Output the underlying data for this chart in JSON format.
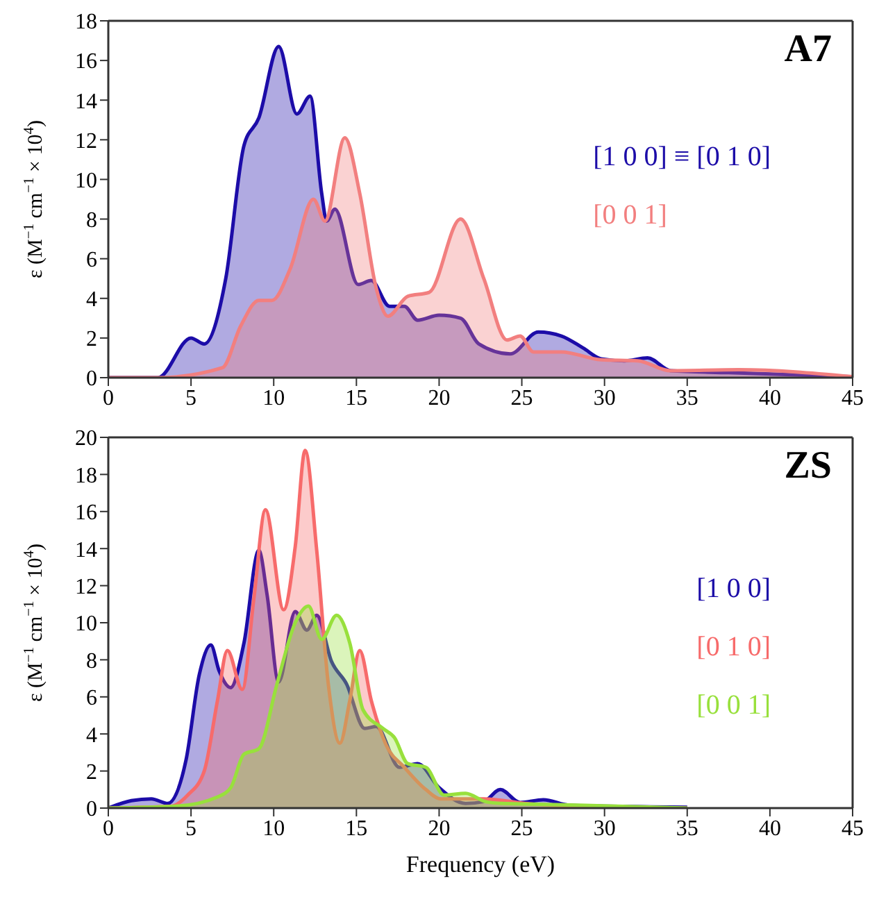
{
  "chart_data": [
    {
      "type": "area",
      "title": "A7",
      "ylabel": "ε (M$^{−1}$ cm$^{−1}$ × 10$^{4}$)",
      "xlim": [
        0,
        45
      ],
      "xticks": [
        0,
        5,
        10,
        15,
        20,
        25,
        30,
        35,
        40,
        45
      ],
      "ylim": [
        0,
        18
      ],
      "yticks": [
        0,
        2,
        4,
        6,
        8,
        10,
        12,
        14,
        16,
        18
      ],
      "legend": "right",
      "series": [
        {
          "name": "[1 0 0] ≡ [0 1 0]",
          "color": "#1c0ca8",
          "x": [
            0,
            3.0,
            5.0,
            5.8,
            7.1,
            8.2,
            9.1,
            10.3,
            11.4,
            12.2,
            12.9,
            13.2,
            13.7,
            15.1,
            15.9,
            17.0,
            17.9,
            18.7,
            20.0,
            21.3,
            22.4,
            24.3,
            26.0,
            27.4,
            28.7,
            29.8,
            31.2,
            32.6,
            34.0,
            37.5,
            45
          ],
          "values": [
            0,
            0,
            2.0,
            1.7,
            5.0,
            11.7,
            13.1,
            16.7,
            13.3,
            14.2,
            9.3,
            7.9,
            8.5,
            4.7,
            4.9,
            3.6,
            3.6,
            2.9,
            3.15,
            3.0,
            1.7,
            1.2,
            2.3,
            2.1,
            1.5,
            0.95,
            0.85,
            1.0,
            0.35,
            0.25,
            0.05
          ]
        },
        {
          "name": "[0 0 1]",
          "color": "#f27f7f",
          "x": [
            0,
            3.0,
            6.9,
            8.0,
            9.1,
            9.9,
            11.0,
            12.4,
            13.1,
            14.3,
            15.2,
            16.2,
            16.9,
            18.1,
            19.4,
            21.3,
            22.7,
            24.1,
            24.9,
            25.7,
            27.4,
            29.8,
            32.0,
            34.0,
            38.1,
            45
          ],
          "values": [
            0,
            0,
            0.5,
            2.6,
            3.9,
            3.9,
            5.5,
            9.0,
            7.9,
            12.1,
            9.3,
            4.5,
            3.1,
            4.1,
            4.3,
            8.0,
            5.0,
            1.9,
            2.1,
            1.3,
            1.3,
            0.9,
            0.85,
            0.35,
            0.4,
            0.05
          ]
        }
      ]
    },
    {
      "type": "area",
      "title": "ZS",
      "xlabel": "Frequency (eV)",
      "ylabel": "ε (M$^{−1}$ cm$^{−1}$ × 10$^{4}$)",
      "xlim": [
        0,
        45
      ],
      "xticks": [
        0,
        5,
        10,
        15,
        20,
        25,
        30,
        35,
        40,
        45
      ],
      "ylim": [
        0,
        20
      ],
      "yticks": [
        0,
        2,
        4,
        6,
        8,
        10,
        12,
        14,
        16,
        18,
        20
      ],
      "legend": "right",
      "series": [
        {
          "name": "[1 0 0]",
          "color": "#1c0ca8",
          "x": [
            0,
            1.4,
            2.6,
            3.6,
            4.7,
            5.5,
            6.2,
            6.7,
            7.4,
            8.2,
            9.1,
            9.6,
            10.3,
            11.3,
            12.0,
            12.6,
            13.5,
            14.4,
            15.5,
            16.2,
            17.6,
            18.7,
            20.0,
            21.6,
            22.7,
            23.7,
            24.9,
            26.3,
            27.9,
            35
          ],
          "values": [
            0,
            0.4,
            0.5,
            0.25,
            2.6,
            7.2,
            8.8,
            7.4,
            6.5,
            8.9,
            13.9,
            11.5,
            6.8,
            10.6,
            9.6,
            10.4,
            7.9,
            6.7,
            4.3,
            4.4,
            2.2,
            2.4,
            1.1,
            0.25,
            0.35,
            1.0,
            0.3,
            0.45,
            0.15,
            0.05
          ]
        },
        {
          "name": "[0 1 0]",
          "color": "#f76b6b",
          "x": [
            0,
            3.8,
            4.8,
            5.8,
            6.6,
            7.2,
            8.1,
            8.8,
            9.5,
            10.6,
            11.3,
            11.9,
            12.6,
            13.3,
            14.0,
            14.6,
            15.2,
            15.9,
            16.8,
            17.9,
            19.2,
            20.1,
            21.0,
            22.7,
            25.2,
            29.3,
            35
          ],
          "values": [
            0,
            0.1,
            0.7,
            2.0,
            5.8,
            8.5,
            6.4,
            11.3,
            16.1,
            10.7,
            14.1,
            19.3,
            13.9,
            6.7,
            3.5,
            5.8,
            8.5,
            5.8,
            3.4,
            2.2,
            1.0,
            0.5,
            0.5,
            0.5,
            0.25,
            0.07,
            0
          ]
        },
        {
          "name": "[0 0 1]",
          "color": "#98e03c",
          "x": [
            0,
            4.1,
            6.6,
            7.4,
            8.2,
            9.1,
            10.2,
            11.3,
            12.1,
            12.9,
            13.8,
            14.6,
            15.4,
            16.6,
            17.3,
            18.1,
            19.2,
            20.3,
            21.6,
            22.8,
            23.8,
            26.5,
            30.7,
            35
          ],
          "values": [
            0,
            0.1,
            0.6,
            1.1,
            2.9,
            3.2,
            6.7,
            10.0,
            10.9,
            9.1,
            10.4,
            8.9,
            5.3,
            4.3,
            3.8,
            2.4,
            2.2,
            0.7,
            0.8,
            0.35,
            0.25,
            0.2,
            0.1,
            0
          ]
        }
      ]
    }
  ]
}
